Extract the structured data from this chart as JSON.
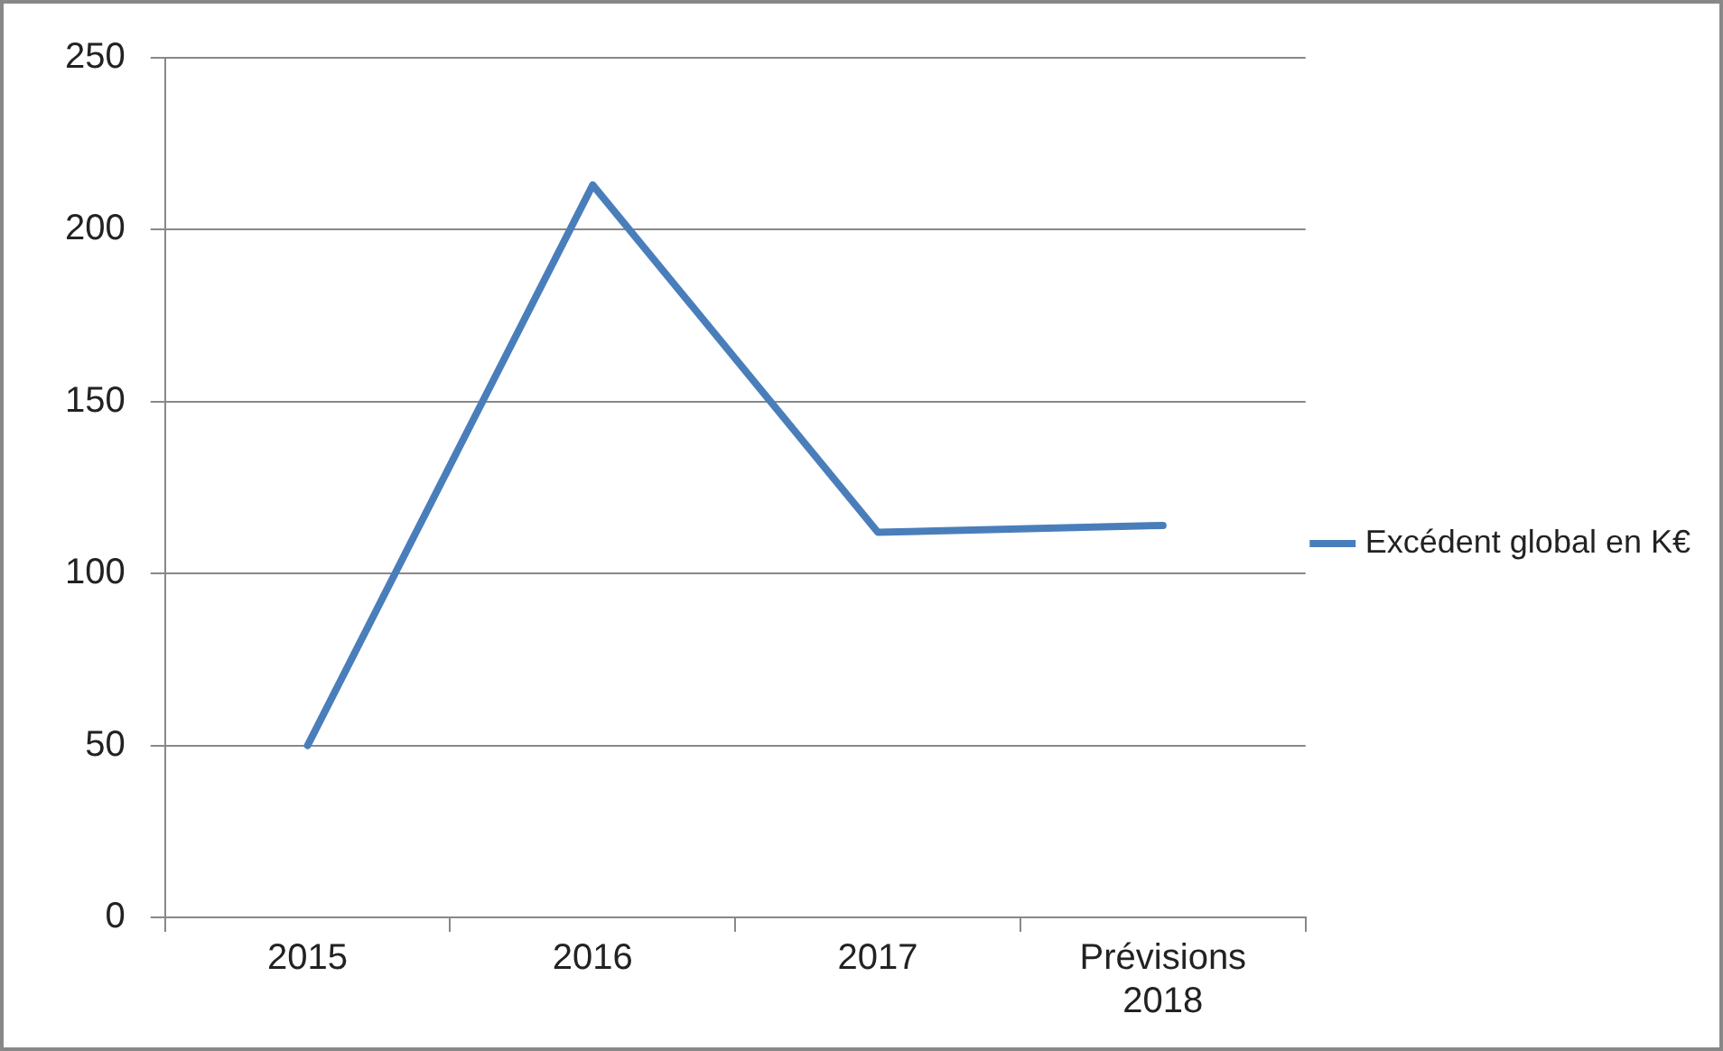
{
  "chart_data": {
    "type": "line",
    "categories": [
      "2015",
      "2016",
      "2017",
      "Prévisions 2018"
    ],
    "series": [
      {
        "name": "Excédent global en K€",
        "color": "#4a7ebb",
        "values": [
          50,
          213,
          112,
          114
        ]
      }
    ],
    "ylim": [
      0,
      250
    ],
    "yticks": [
      0,
      50,
      100,
      150,
      200,
      250
    ],
    "grid": "y",
    "legend": "right",
    "marker": "none",
    "line_style": "solid"
  }
}
